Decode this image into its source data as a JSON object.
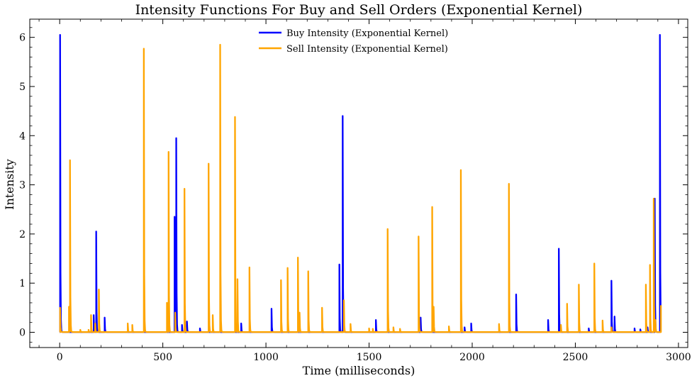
{
  "chart_data": {
    "type": "line",
    "title": "Intensity Functions For Buy and Sell Orders (Exponential Kernel)",
    "xlabel": "Time (milliseconds)",
    "ylabel": "Intensity",
    "xlim": [
      -145,
      3045
    ],
    "ylim": [
      -0.31,
      6.37
    ],
    "xticks": [
      0,
      500,
      1000,
      1500,
      2000,
      2500,
      3000
    ],
    "xtick_labels": [
      "0",
      "500",
      "1000",
      "1500",
      "2000",
      "2500",
      "3000"
    ],
    "yticks": [
      0,
      1,
      2,
      3,
      4,
      5,
      6
    ],
    "ytick_labels": [
      "0",
      "1",
      "2",
      "3",
      "4",
      "5",
      "6"
    ],
    "baseline": 0.005,
    "decay": 0.8,
    "x_end": 2915,
    "legend": {
      "position": "top-center"
    },
    "series": [
      {
        "name": "Buy Intensity (Exponential Kernel)",
        "color": "#0000ff",
        "spikes": [
          [
            2,
            6.05
          ],
          [
            165,
            0.35
          ],
          [
            177,
            2.05
          ],
          [
            218,
            0.3
          ],
          [
            557,
            2.35
          ],
          [
            565,
            3.95
          ],
          [
            593,
            0.15
          ],
          [
            617,
            0.22
          ],
          [
            680,
            0.08
          ],
          [
            880,
            0.18
          ],
          [
            1027,
            0.48
          ],
          [
            1356,
            1.38
          ],
          [
            1372,
            4.4
          ],
          [
            1533,
            0.25
          ],
          [
            1750,
            0.3
          ],
          [
            1963,
            0.1
          ],
          [
            1995,
            0.18
          ],
          [
            2213,
            0.77
          ],
          [
            2368,
            0.25
          ],
          [
            2420,
            1.7
          ],
          [
            2565,
            0.08
          ],
          [
            2675,
            1.05
          ],
          [
            2690,
            0.32
          ],
          [
            2787,
            0.08
          ],
          [
            2815,
            0.06
          ],
          [
            2850,
            0.1
          ],
          [
            2885,
            2.72
          ],
          [
            2910,
            6.05
          ]
        ]
      },
      {
        "name": "Sell Intensity (Exponential Kernel)",
        "color": "#ffa500",
        "spikes": [
          [
            2,
            0.5
          ],
          [
            45,
            0.52
          ],
          [
            50,
            3.5
          ],
          [
            100,
            0.05
          ],
          [
            140,
            0.05
          ],
          [
            152,
            0.35
          ],
          [
            172,
            0.18
          ],
          [
            190,
            0.87
          ],
          [
            330,
            0.18
          ],
          [
            352,
            0.15
          ],
          [
            408,
            5.77
          ],
          [
            520,
            0.6
          ],
          [
            528,
            3.67
          ],
          [
            560,
            0.4
          ],
          [
            605,
            2.92
          ],
          [
            722,
            3.43
          ],
          [
            742,
            0.35
          ],
          [
            778,
            5.85
          ],
          [
            850,
            4.38
          ],
          [
            862,
            1.08
          ],
          [
            920,
            1.32
          ],
          [
            1073,
            1.06
          ],
          [
            1105,
            1.31
          ],
          [
            1155,
            1.52
          ],
          [
            1163,
            0.4
          ],
          [
            1205,
            1.24
          ],
          [
            1272,
            0.5
          ],
          [
            1378,
            0.65
          ],
          [
            1410,
            0.17
          ],
          [
            1500,
            0.08
          ],
          [
            1518,
            0.07
          ],
          [
            1590,
            2.1
          ],
          [
            1618,
            0.1
          ],
          [
            1650,
            0.07
          ],
          [
            1740,
            1.95
          ],
          [
            1806,
            2.55
          ],
          [
            1813,
            0.52
          ],
          [
            1887,
            0.12
          ],
          [
            1945,
            3.3
          ],
          [
            2130,
            0.17
          ],
          [
            2178,
            3.02
          ],
          [
            2430,
            0.15
          ],
          [
            2460,
            0.58
          ],
          [
            2517,
            0.97
          ],
          [
            2592,
            1.4
          ],
          [
            2632,
            0.24
          ],
          [
            2675,
            0.1
          ],
          [
            2842,
            0.97
          ],
          [
            2862,
            1.37
          ],
          [
            2880,
            2.72
          ],
          [
            2888,
            0.25
          ],
          [
            2915,
            0.55
          ]
        ]
      }
    ]
  }
}
